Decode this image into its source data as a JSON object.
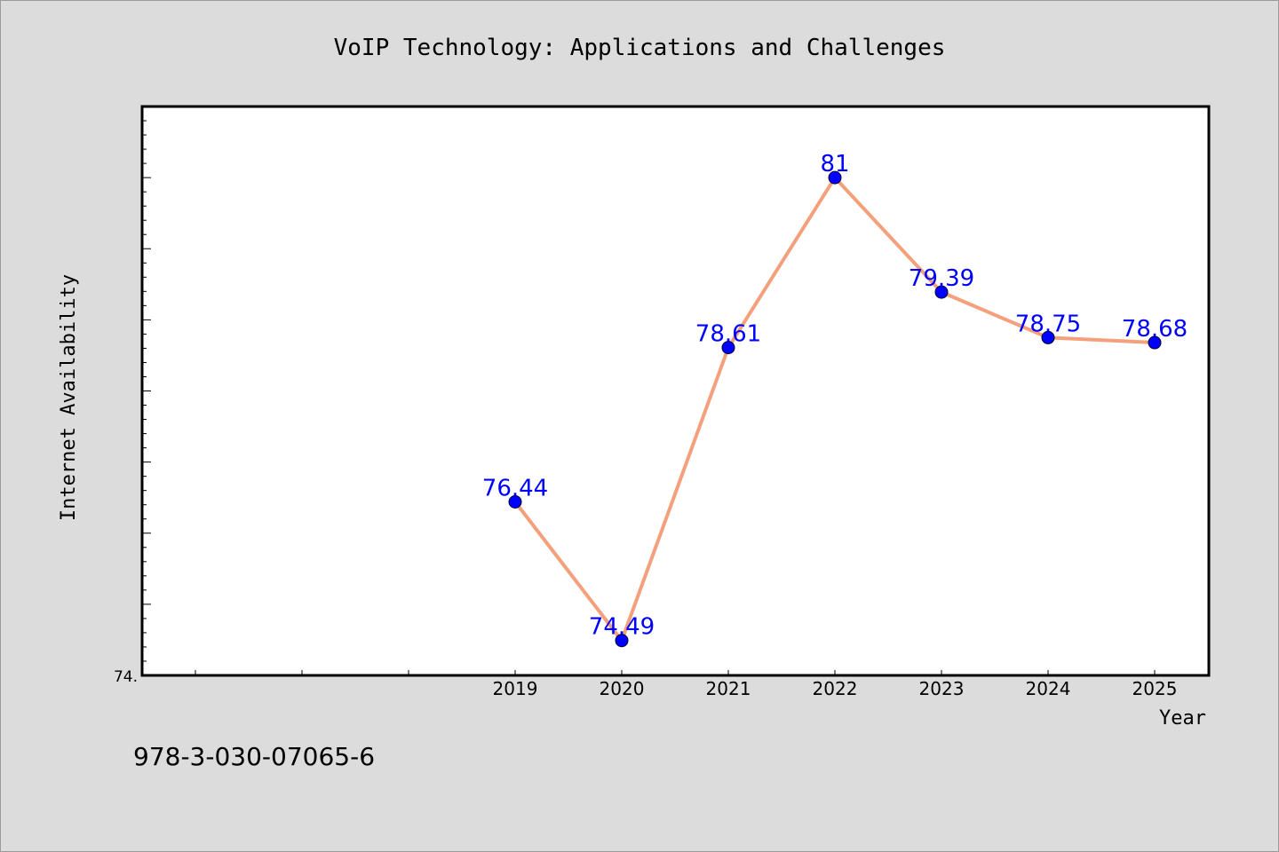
{
  "chart_data": {
    "type": "line",
    "title": "VoIP Technology: Applications and Challenges",
    "xlabel": "Year",
    "ylabel": "Internet Availability",
    "categories": [
      "2019",
      "2020",
      "2021",
      "2022",
      "2023",
      "2024",
      "2025"
    ],
    "series": [
      {
        "values": [
          76.44,
          74.49,
          78.61,
          81,
          79.39,
          78.75,
          78.68
        ],
        "labels": [
          "76.44",
          "74.49",
          "78.61",
          "81",
          "79.39",
          "78.75",
          "78.68"
        ]
      }
    ],
    "ylim": [
      74,
      82
    ],
    "y_tick_label": "74.",
    "grid": false,
    "line_color": "#f4a07c",
    "marker_color": "#0000ff",
    "label_color": "#0000ff"
  },
  "footer": {
    "isbn": "978-3-030-07065-6"
  }
}
